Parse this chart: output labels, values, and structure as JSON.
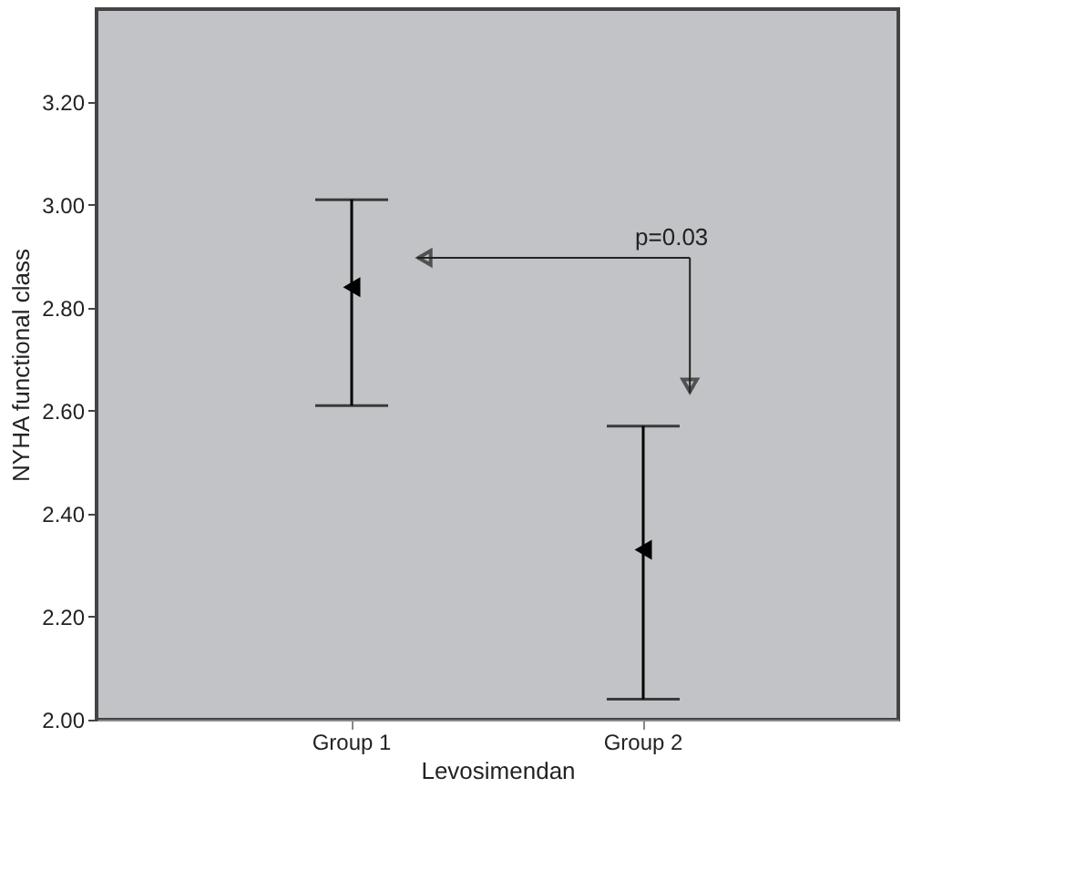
{
  "chart_data": {
    "type": "scatter",
    "xlabel": "Levosimendan",
    "ylabel": "NYHA functional class",
    "categories": [
      "Group 1",
      "Group 2"
    ],
    "values": [
      2.84,
      2.33
    ],
    "errors": [
      [
        2.61,
        3.01
      ],
      [
        2.04,
        2.57
      ]
    ],
    "color": "#000000",
    "marker": "triangle",
    "ylim": [
      2.0,
      3.38
    ],
    "yticks": [
      {
        "value": 2.0,
        "label": "2.00"
      },
      {
        "value": 2.2,
        "label": "2.20"
      },
      {
        "value": 2.4,
        "label": "2.40"
      },
      {
        "value": 2.6,
        "label": "2.60"
      },
      {
        "value": 2.8,
        "label": "2.80"
      },
      {
        "value": 3.0,
        "label": "3.00"
      },
      {
        "value": 3.2,
        "label": "3.20"
      }
    ],
    "grid": false,
    "annotations": [
      "p=0.03"
    ]
  }
}
